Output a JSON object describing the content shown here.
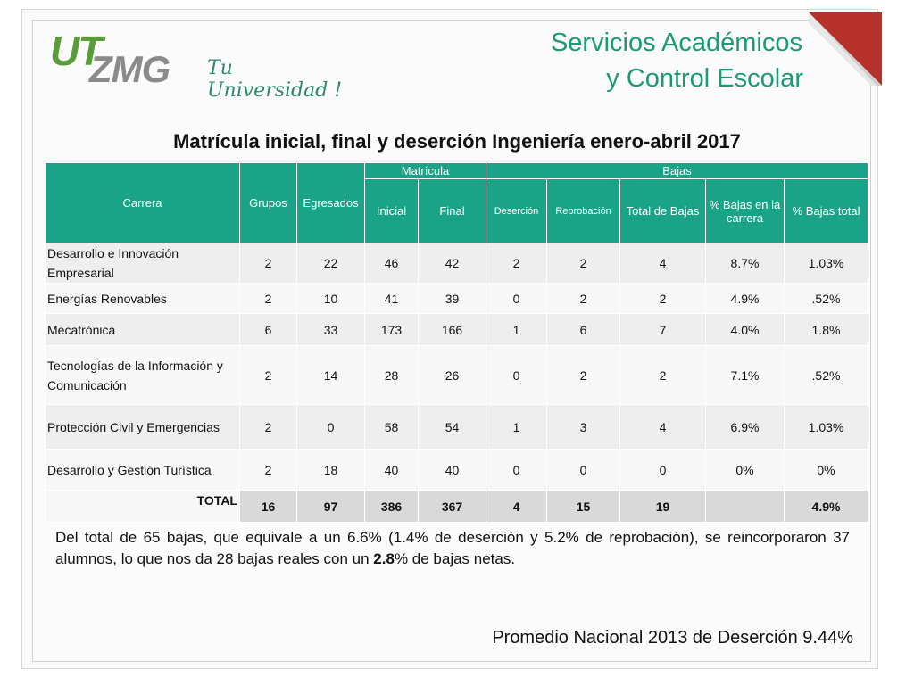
{
  "header": {
    "logo_main": "UT",
    "logo_sub": "ZMG",
    "logo_tagline": "Tu Universidad !",
    "title_line1": "Servicios Académicos",
    "title_line2": "y Control Escolar"
  },
  "table": {
    "title": "Matrícula inicial, final y deserción Ingeniería enero-abril 2017",
    "headers": {
      "carrera": "Carrera",
      "grupos": "Grupos",
      "egresados": "Egresados",
      "matricula": "Matrícula",
      "bajas": "Bajas",
      "inicial": "Inicial",
      "final": "Final",
      "desercion": "Deserción",
      "reprobacion": "Reprobación",
      "total_bajas": "Total de Bajas",
      "pct_carrera": "% Bajas en la carrera",
      "pct_total": "% Bajas total"
    },
    "rows": [
      {
        "carrera": "Desarrollo e Innovación Empresarial",
        "grupos": "2",
        "egresados": "22",
        "inicial": "46",
        "final": "42",
        "desercion": "2",
        "reprobacion": "2",
        "total_bajas": "4",
        "pct_carrera": "8.7%",
        "pct_total": "1.03%"
      },
      {
        "carrera": "Energías Renovables",
        "grupos": "2",
        "egresados": "10",
        "inicial": "41",
        "final": "39",
        "desercion": "0",
        "reprobacion": "2",
        "total_bajas": "2",
        "pct_carrera": "4.9%",
        "pct_total": ".52%"
      },
      {
        "carrera": "Mecatrónica",
        "grupos": "6",
        "egresados": "33",
        "inicial": "173",
        "final": "166",
        "desercion": "1",
        "reprobacion": "6",
        "total_bajas": "7",
        "pct_carrera": "4.0%",
        "pct_total": "1.8%"
      },
      {
        "carrera": "Tecnologías de la Información y Comunicación",
        "grupos": "2",
        "egresados": "14",
        "inicial": "28",
        "final": "26",
        "desercion": "0",
        "reprobacion": "2",
        "total_bajas": "2",
        "pct_carrera": "7.1%",
        "pct_total": ".52%"
      },
      {
        "carrera": "Protección Civil y Emergencias",
        "grupos": "2",
        "egresados": "0",
        "inicial": "58",
        "final": "54",
        "desercion": "1",
        "reprobacion": "3",
        "total_bajas": "4",
        "pct_carrera": "6.9%",
        "pct_total": "1.03%"
      },
      {
        "carrera": "Desarrollo y Gestión Turística",
        "grupos": "2",
        "egresados": "18",
        "inicial": "40",
        "final": "40",
        "desercion": "0",
        "reprobacion": "0",
        "total_bajas": "0",
        "pct_carrera": "0%",
        "pct_total": "0%"
      }
    ],
    "total": {
      "label": "TOTAL",
      "grupos": "16",
      "egresados": "97",
      "inicial": "386",
      "final": "367",
      "desercion": "4",
      "reprobacion": "15",
      "total_bajas": "19",
      "pct_carrera": "",
      "pct_total": "4.9%"
    }
  },
  "note": {
    "before": "Del total de 65 bajas, que equivale a un 6.6% (1.4% de deserción y 5.2% de reprobación), se reincorporaron 37 alumnos, lo que nos da 28 bajas reales con un ",
    "bold": "2.8",
    "after": "% de bajas netas."
  },
  "footer": {
    "promedio": "Promedio Nacional 2013 de Deserción  9.44%"
  },
  "colors": {
    "accent": "#1aa487",
    "title_green": "#1b9a74",
    "corner_red": "#c0392b"
  }
}
